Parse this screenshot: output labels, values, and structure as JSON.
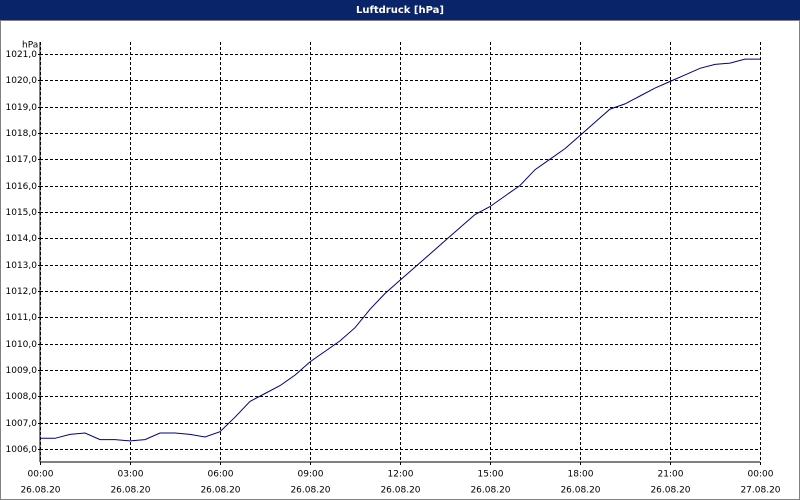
{
  "chart_data": {
    "type": "line",
    "title": "Luftdruck [hPa]",
    "y_label": "hPa",
    "x": [
      0,
      0.5,
      1,
      1.5,
      2,
      2.5,
      3,
      3.5,
      4,
      4.5,
      5,
      5.5,
      6,
      6.5,
      7,
      7.5,
      8,
      8.5,
      9,
      9.5,
      10,
      10.5,
      11,
      11.5,
      12,
      12.5,
      13,
      13.5,
      14,
      14.5,
      15,
      15.5,
      16,
      16.5,
      17,
      17.5,
      18,
      18.5,
      19,
      19.5,
      20,
      20.5,
      21,
      21.5,
      22,
      22.5,
      23,
      23.5,
      24
    ],
    "series": [
      {
        "name": "Luftdruck",
        "color": "#000080",
        "values": [
          1006.4,
          1006.4,
          1006.55,
          1006.6,
          1006.35,
          1006.35,
          1006.3,
          1006.35,
          1006.6,
          1006.6,
          1006.55,
          1006.45,
          1006.65,
          1007.2,
          1007.8,
          1008.1,
          1008.4,
          1008.8,
          1009.3,
          1009.7,
          1010.1,
          1010.6,
          1011.3,
          1011.9,
          1012.4,
          1012.9,
          1013.4,
          1013.9,
          1014.4,
          1014.9,
          1015.2,
          1015.6,
          1016.0,
          1016.6,
          1017.0,
          1017.4,
          1017.9,
          1018.4,
          1018.9,
          1019.1,
          1019.4,
          1019.7,
          1019.95,
          1020.2,
          1020.45,
          1020.6,
          1020.65,
          1020.8,
          1020.8
        ]
      }
    ],
    "xlim": [
      0,
      24
    ],
    "xticks": [
      {
        "value": 0,
        "label": "00:00",
        "date": "26.08.20"
      },
      {
        "value": 3,
        "label": "03:00",
        "date": "26.08.20"
      },
      {
        "value": 6,
        "label": "06:00",
        "date": "26.08.20"
      },
      {
        "value": 9,
        "label": "09:00",
        "date": "26.08.20"
      },
      {
        "value": 12,
        "label": "12:00",
        "date": "26.08.20"
      },
      {
        "value": 15,
        "label": "15:00",
        "date": "26.08.20"
      },
      {
        "value": 18,
        "label": "18:00",
        "date": "26.08.20"
      },
      {
        "value": 21,
        "label": "21:00",
        "date": "26.08.20"
      },
      {
        "value": 24,
        "label": "00:00",
        "date": "27.08.20"
      }
    ],
    "ylim": [
      1005.5,
      1021.45
    ],
    "yticks": [
      {
        "value": 1006,
        "label": "1006,0"
      },
      {
        "value": 1007,
        "label": "1007,0"
      },
      {
        "value": 1008,
        "label": "1008,0"
      },
      {
        "value": 1009,
        "label": "1009,0"
      },
      {
        "value": 1010,
        "label": "1010,0"
      },
      {
        "value": 1011,
        "label": "1011,0"
      },
      {
        "value": 1012,
        "label": "1012,0"
      },
      {
        "value": 1013,
        "label": "1013,0"
      },
      {
        "value": 1014,
        "label": "1014,0"
      },
      {
        "value": 1015,
        "label": "1015,0"
      },
      {
        "value": 1016,
        "label": "1016,0"
      },
      {
        "value": 1017,
        "label": "1017,0"
      },
      {
        "value": 1018,
        "label": "1018,0"
      },
      {
        "value": 1019,
        "label": "1019,0"
      },
      {
        "value": 1020,
        "label": "1020,0"
      },
      {
        "value": 1021,
        "label": "1021,0"
      }
    ],
    "grid": true
  }
}
